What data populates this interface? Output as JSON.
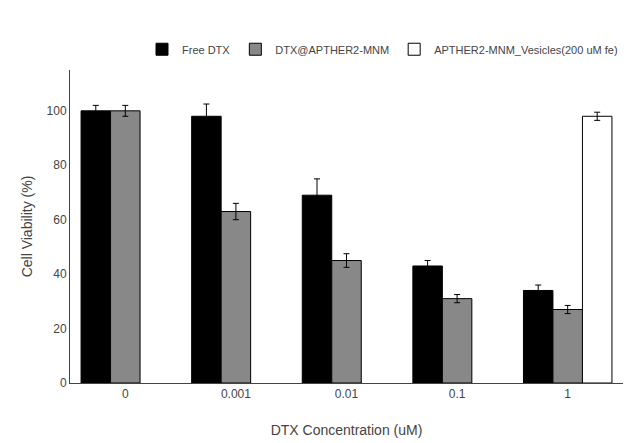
{
  "chart_data": {
    "type": "bar",
    "categories": [
      "0",
      "0.001",
      "0.01",
      "0.1",
      "1"
    ],
    "series": [
      {
        "name": "Free DTX",
        "color": "#000000",
        "values": [
          100,
          98,
          69,
          43,
          34
        ],
        "errors": [
          2.0,
          4.5,
          6.0,
          2.0,
          2.0
        ]
      },
      {
        "name": "DTX@APTHER2-MNM",
        "color": "#888888",
        "values": [
          100,
          63,
          45,
          31,
          27
        ],
        "errors": [
          2.0,
          3.0,
          2.5,
          1.5,
          1.5
        ]
      },
      {
        "name": "APTHER2-MNM_Vesicles(200 uM fe)",
        "color": "#ffffff",
        "values": [
          null,
          null,
          null,
          null,
          98
        ],
        "errors": [
          null,
          null,
          null,
          null,
          1.5
        ]
      }
    ],
    "xlabel": "DTX Concentration (uM)",
    "ylabel": "Cell Viability (%)",
    "ylim": [
      0,
      115
    ],
    "yticks": [
      0,
      20,
      40,
      60,
      80,
      100
    ],
    "grid": false,
    "legend": "upper right"
  }
}
